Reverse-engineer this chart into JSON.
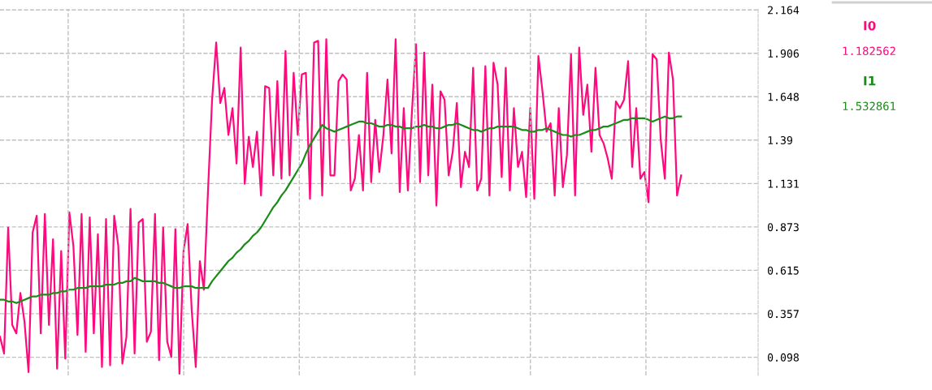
{
  "chart_data": {
    "type": "line",
    "categories": [
      null,
      null,
      null,
      null,
      null,
      null,
      null,
      null,
      null,
      null,
      null,
      null,
      null,
      null,
      null,
      null,
      null,
      null,
      null,
      null,
      null,
      null,
      null,
      null,
      null,
      null,
      null,
      null,
      null,
      null,
      null,
      null,
      null,
      null,
      null,
      null,
      null,
      null,
      null,
      null,
      null,
      null,
      null,
      null,
      null,
      null,
      null,
      null,
      null,
      null,
      null,
      null,
      null,
      null,
      null,
      null,
      null,
      null,
      null,
      null,
      null,
      null,
      null,
      null,
      null,
      null,
      null,
      null,
      null,
      null,
      null,
      null,
      null,
      null,
      null,
      null,
      null,
      null,
      null,
      null,
      null,
      null,
      null,
      null,
      null,
      null,
      null,
      null,
      null,
      null,
      null,
      null,
      null,
      null,
      null,
      null,
      null,
      null,
      null,
      null,
      null,
      null,
      null,
      null,
      null,
      null,
      null,
      null,
      null,
      null,
      null,
      null,
      null,
      null,
      null,
      null,
      null,
      null,
      null,
      null,
      null,
      null,
      null,
      null,
      null,
      null,
      null,
      null,
      null,
      null,
      null,
      null,
      null,
      null,
      null,
      null,
      null,
      null,
      null,
      null,
      null,
      null,
      null,
      null,
      null,
      null,
      null,
      null,
      null,
      null,
      null,
      null,
      null,
      null,
      null,
      null,
      null,
      null,
      null,
      null,
      null,
      null,
      null,
      null,
      null,
      null,
      null,
      null
    ],
    "series": [
      {
        "name": "I0",
        "color": "#ff0a7e",
        "values": [
          0.22,
          0.12,
          0.87,
          0.29,
          0.24,
          0.48,
          0.31,
          0.01,
          0.84,
          0.94,
          0.24,
          0.95,
          0.29,
          0.8,
          0.03,
          0.73,
          0.09,
          0.96,
          0.76,
          0.23,
          0.95,
          0.13,
          0.93,
          0.24,
          0.83,
          0.04,
          0.92,
          0.05,
          0.94,
          0.76,
          0.06,
          0.22,
          0.98,
          0.12,
          0.9,
          0.92,
          0.19,
          0.25,
          0.95,
          0.08,
          0.87,
          0.19,
          0.1,
          0.86,
          0.0,
          0.73,
          0.89,
          0.38,
          0.04,
          0.67,
          0.5,
          1.09,
          1.63,
          1.97,
          1.61,
          1.7,
          1.42,
          1.58,
          1.25,
          1.94,
          1.13,
          1.41,
          1.23,
          1.44,
          1.06,
          1.71,
          1.7,
          1.18,
          1.74,
          1.16,
          1.92,
          1.18,
          1.79,
          1.42,
          1.78,
          1.79,
          1.04,
          1.97,
          1.98,
          1.06,
          1.99,
          1.18,
          1.18,
          1.74,
          1.78,
          1.75,
          1.09,
          1.16,
          1.42,
          1.09,
          1.79,
          1.14,
          1.51,
          1.2,
          1.42,
          1.75,
          1.31,
          1.99,
          1.08,
          1.58,
          1.09,
          1.56,
          1.96,
          1.14,
          1.91,
          1.18,
          1.72,
          1.0,
          1.68,
          1.63,
          1.18,
          1.32,
          1.61,
          1.11,
          1.32,
          1.23,
          1.82,
          1.09,
          1.16,
          1.83,
          1.06,
          1.85,
          1.72,
          1.17,
          1.82,
          1.09,
          1.58,
          1.23,
          1.32,
          1.05,
          1.58,
          1.04,
          1.89,
          1.68,
          1.44,
          1.49,
          1.06,
          1.58,
          1.11,
          1.3,
          1.9,
          1.06,
          1.94,
          1.54,
          1.72,
          1.32,
          1.82,
          1.42,
          1.37,
          1.28,
          1.16,
          1.62,
          1.58,
          1.63,
          1.86,
          1.23,
          1.58,
          1.16,
          1.2,
          1.02,
          1.9,
          1.87,
          1.39,
          1.16,
          1.91,
          1.75,
          1.06,
          1.18
        ]
      },
      {
        "name": "I1",
        "color": "#1a8c1a",
        "values": [
          0.44,
          0.44,
          0.43,
          0.43,
          0.42,
          0.43,
          0.44,
          0.45,
          0.46,
          0.46,
          0.47,
          0.47,
          0.47,
          0.48,
          0.48,
          0.49,
          0.49,
          0.5,
          0.5,
          0.51,
          0.51,
          0.51,
          0.52,
          0.52,
          0.52,
          0.52,
          0.53,
          0.53,
          0.53,
          0.54,
          0.54,
          0.55,
          0.55,
          0.57,
          0.56,
          0.55,
          0.55,
          0.55,
          0.55,
          0.54,
          0.54,
          0.53,
          0.52,
          0.51,
          0.51,
          0.52,
          0.52,
          0.52,
          0.51,
          0.51,
          0.51,
          0.51,
          0.55,
          0.58,
          0.61,
          0.64,
          0.67,
          0.69,
          0.72,
          0.74,
          0.77,
          0.79,
          0.82,
          0.84,
          0.87,
          0.91,
          0.95,
          0.99,
          1.02,
          1.06,
          1.09,
          1.13,
          1.17,
          1.21,
          1.25,
          1.31,
          1.36,
          1.4,
          1.44,
          1.48,
          1.46,
          1.45,
          1.44,
          1.45,
          1.46,
          1.47,
          1.48,
          1.49,
          1.5,
          1.5,
          1.49,
          1.49,
          1.48,
          1.47,
          1.47,
          1.48,
          1.48,
          1.47,
          1.47,
          1.46,
          1.46,
          1.46,
          1.47,
          1.47,
          1.48,
          1.47,
          1.47,
          1.46,
          1.46,
          1.47,
          1.48,
          1.48,
          1.49,
          1.48,
          1.47,
          1.46,
          1.45,
          1.45,
          1.44,
          1.45,
          1.46,
          1.46,
          1.47,
          1.47,
          1.47,
          1.47,
          1.47,
          1.46,
          1.45,
          1.45,
          1.44,
          1.44,
          1.45,
          1.45,
          1.46,
          1.45,
          1.44,
          1.43,
          1.42,
          1.42,
          1.41,
          1.42,
          1.42,
          1.43,
          1.44,
          1.45,
          1.45,
          1.46,
          1.47,
          1.47,
          1.48,
          1.49,
          1.5,
          1.51,
          1.51,
          1.52,
          1.52,
          1.52,
          1.52,
          1.51,
          1.5,
          1.51,
          1.52,
          1.53,
          1.52,
          1.52,
          1.53,
          1.53
        ]
      }
    ],
    "ylim": [
      -0.01,
      2.17
    ],
    "yticks": [
      0.098,
      0.357,
      0.615,
      0.873,
      1.131,
      1.39,
      1.648,
      1.906,
      2.164
    ],
    "tick_labels": "y",
    "grid": true,
    "marker": "none",
    "line_style": "solid",
    "annotations": [
      "1.182562",
      "1.532861"
    ]
  }
}
